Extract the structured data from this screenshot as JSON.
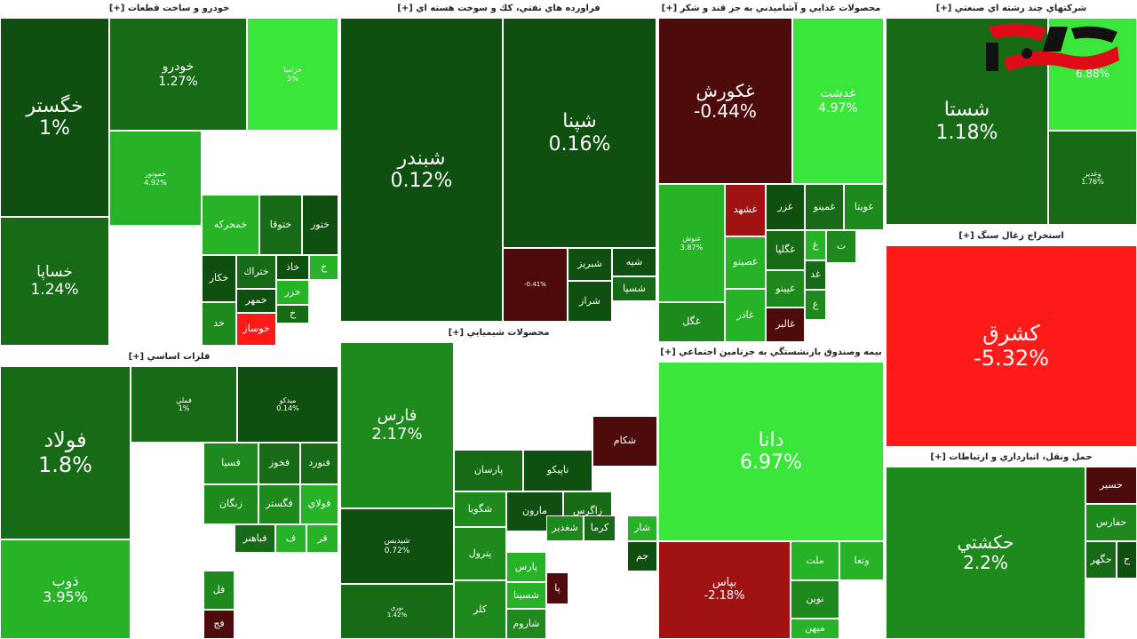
{
  "colors": {
    "g1": "#0f4f0f",
    "g2": "#176b17",
    "g3": "#1e8a1e",
    "g4": "#27b327",
    "g5": "#39e639",
    "r1": "#4d0b0b",
    "r2": "#a11313",
    "r3": "#ff1a1a"
  },
  "panels": [
    {
      "key": "p1",
      "title": "خودرو و ساخت قطعات [+]",
      "cells": [
        {
          "name": "خگستر",
          "pct": "1%",
          "color": "g1",
          "font": 22
        },
        {
          "name": "خودرو",
          "pct": "1.27%",
          "color": "g2",
          "font": 14
        },
        {
          "name": "خزاميا",
          "pct": "5%",
          "color": "g5",
          "font": 8
        },
        {
          "name": "خساپا",
          "pct": "1.24%",
          "color": "g2",
          "font": 17
        },
        {
          "name": "خمهر",
          "pct": "",
          "color": "g1",
          "font": 11
        },
        {
          "name": "خمحركه",
          "pct": "",
          "color": "g4",
          "font": 11
        },
        {
          "name": "ختوقا",
          "pct": "",
          "color": "g2",
          "font": 11
        },
        {
          "name": "ختور",
          "pct": "",
          "color": "g1",
          "font": 11
        },
        {
          "name": "خكار",
          "pct": "",
          "color": "g1",
          "font": 11
        },
        {
          "name": "ختراك",
          "pct": "",
          "color": "g2",
          "font": 11
        },
        {
          "name": "خوساز",
          "pct": "",
          "color": "r3",
          "font": 11
        },
        {
          "name": "خمونور",
          "pct": "4.92%",
          "color": "g4",
          "font": 8
        },
        {
          "name": "خاذ",
          "pct": "",
          "color": "g1",
          "font": 11
        },
        {
          "name": "خزر",
          "pct": "",
          "color": "g4",
          "font": 11
        },
        {
          "name": "خد",
          "pct": "",
          "color": "g3",
          "font": 11
        },
        {
          "name": "خ",
          "pct": "",
          "color": "g4",
          "font": 11
        },
        {
          "name": "خ",
          "pct": "",
          "color": "g2",
          "font": 11
        }
      ]
    },
    {
      "key": "p2",
      "title": "فراورده هاي نفتي، كك و سوخت هسته اي [+]",
      "cells": [
        {
          "name": "شبندر",
          "pct": "0.12%",
          "color": "g1",
          "font": 22
        },
        {
          "name": "شپنا",
          "pct": "0.16%",
          "color": "g1",
          "font": 22
        },
        {
          "name": "شبريز",
          "pct": "",
          "color": "g1",
          "font": 11
        },
        {
          "name": "شراز",
          "pct": "",
          "color": "g1",
          "font": 11
        },
        {
          "name": "شيه",
          "pct": "",
          "color": "g1",
          "font": 11
        },
        {
          "name": "شسپا",
          "pct": "",
          "color": "g2",
          "font": 11
        },
        {
          "name": "",
          "pct": "-0.41%",
          "color": "r1",
          "font": 7
        }
      ]
    },
    {
      "key": "p3",
      "title": "محصولات غذايي و آشاميدني به جز قند و شكر [+]",
      "cells": [
        {
          "name": "غكورش",
          "pct": "-0.44%",
          "color": "r1",
          "font": 20
        },
        {
          "name": "غدشت",
          "pct": "4.97%",
          "color": "g5",
          "font": 14
        },
        {
          "name": "غشهد",
          "pct": "",
          "color": "r2",
          "font": 11
        },
        {
          "name": "غزر",
          "pct": "",
          "color": "g1",
          "font": 11
        },
        {
          "name": "غمينو",
          "pct": "",
          "color": "g2",
          "font": 11
        },
        {
          "name": "غويتا",
          "pct": "",
          "color": "g3",
          "font": 11
        },
        {
          "name": "غصينو",
          "pct": "",
          "color": "g4",
          "font": 11
        },
        {
          "name": "غگلپا",
          "pct": "",
          "color": "g2",
          "font": 11
        },
        {
          "name": "غپينو",
          "pct": "",
          "color": "g3",
          "font": 11
        },
        {
          "name": "غاذر",
          "pct": "",
          "color": "g4",
          "font": 11
        },
        {
          "name": "غالبر",
          "pct": "",
          "color": "r1",
          "font": 11
        },
        {
          "name": "غگل",
          "pct": "",
          "color": "g3",
          "font": 11
        },
        {
          "name": "غنوش",
          "pct": "3.87%",
          "color": "g4",
          "font": 8
        },
        {
          "name": "غ",
          "pct": "",
          "color": "g4",
          "font": 11
        },
        {
          "name": "غ",
          "pct": "",
          "color": "g3",
          "font": 11
        },
        {
          "name": "غ",
          "pct": "",
          "color": "r1",
          "font": 11
        },
        {
          "name": "غد",
          "pct": "",
          "color": "g2",
          "font": 11
        },
        {
          "name": "ت",
          "pct": "",
          "color": "g3",
          "font": 11
        }
      ]
    },
    {
      "key": "p4",
      "title": "شركتهاي چند رشته اي صنعتي [+]",
      "cells": [
        {
          "name": "شستا",
          "pct": "1.18%",
          "color": "g2",
          "font": 22
        },
        {
          "name": "",
          "pct": "6.88%",
          "color": "g5",
          "font": 12
        },
        {
          "name": "وغدير",
          "pct": "1.76%",
          "color": "g2",
          "font": 8
        }
      ]
    },
    {
      "key": "p5",
      "title": "استخراج زغال سنگ [+]",
      "cells": [
        {
          "name": "كشرق",
          "pct": "-5.32%",
          "color": "r3",
          "font": 24
        }
      ]
    },
    {
      "key": "p6",
      "title": "فلزات اساسي [+]",
      "cells": [
        {
          "name": "فولاد",
          "pct": "1.8%",
          "color": "g2",
          "font": 24
        },
        {
          "name": "ذوب",
          "pct": "3.95%",
          "color": "g4",
          "font": 16
        },
        {
          "name": "فملي",
          "pct": "1%",
          "color": "g2",
          "font": 8
        },
        {
          "name": "ميدكو",
          "pct": "0.14%",
          "color": "g1",
          "font": 8
        },
        {
          "name": "فسپا",
          "pct": "",
          "color": "g3",
          "font": 11
        },
        {
          "name": "فخوز",
          "pct": "",
          "color": "g2",
          "font": 11
        },
        {
          "name": "فنورد",
          "pct": "",
          "color": "g2",
          "font": 11
        },
        {
          "name": "زنگان",
          "pct": "",
          "color": "g3",
          "font": 11
        },
        {
          "name": "فگستر",
          "pct": "",
          "color": "g3",
          "font": 11
        },
        {
          "name": "فولاي",
          "pct": "",
          "color": "g4",
          "font": 11
        },
        {
          "name": "فباهنر",
          "pct": "",
          "color": "g2",
          "font": 11
        },
        {
          "name": "ف",
          "pct": "",
          "color": "g4",
          "font": 11
        },
        {
          "name": "فر",
          "pct": "",
          "color": "g4",
          "font": 11
        },
        {
          "name": "فل",
          "pct": "",
          "color": "g3",
          "font": 11
        },
        {
          "name": "فج",
          "pct": "",
          "color": "r1",
          "font": 11
        }
      ]
    },
    {
      "key": "p7",
      "title": "محصولات شيميايي [+]",
      "cells": [
        {
          "name": "فارس",
          "pct": "2.17%",
          "color": "g3",
          "font": 18
        },
        {
          "name": "شپديس",
          "pct": "0.72%",
          "color": "g1",
          "font": 9
        },
        {
          "name": "پارسان",
          "pct": "",
          "color": "g2",
          "font": 11
        },
        {
          "name": "تاپيكو",
          "pct": "",
          "color": "g1",
          "font": 11
        },
        {
          "name": "شكام",
          "pct": "",
          "color": "r1",
          "font": 11
        },
        {
          "name": "مارون",
          "pct": "",
          "color": "g1",
          "font": 11
        },
        {
          "name": "زاگرس",
          "pct": "",
          "color": "g2",
          "font": 11
        },
        {
          "name": "شگويا",
          "pct": "",
          "color": "g3",
          "font": 11
        },
        {
          "name": "پترول",
          "pct": "",
          "color": "g3",
          "font": 11
        },
        {
          "name": "كلر",
          "pct": "",
          "color": "g3",
          "font": 11
        },
        {
          "name": "شغدير",
          "pct": "",
          "color": "g3",
          "font": 11
        },
        {
          "name": "كرما",
          "pct": "",
          "color": "g2",
          "font": 11
        },
        {
          "name": "جم",
          "pct": "",
          "color": "g1",
          "font": 11
        },
        {
          "name": "پارس",
          "pct": "",
          "color": "g4",
          "font": 11
        },
        {
          "name": "شسينا",
          "pct": "",
          "color": "g4",
          "font": 11
        },
        {
          "name": "شاروم",
          "pct": "",
          "color": "g3",
          "font": 11
        },
        {
          "name": "شار",
          "pct": "",
          "color": "g4",
          "font": 11
        },
        {
          "name": "پا",
          "pct": "",
          "color": "r1",
          "font": 11
        },
        {
          "name": "نوري",
          "pct": "1.42%",
          "color": "g2",
          "font": 7
        }
      ]
    },
    {
      "key": "p8",
      "title": "بيمه وصندوق بازنشستگي به جزتامين اجتماعي [+]",
      "cells": [
        {
          "name": "دانا",
          "pct": "6.97%",
          "color": "g5",
          "font": 22
        },
        {
          "name": "بپاس",
          "pct": "-2.18%",
          "color": "r2",
          "font": 13
        },
        {
          "name": "ملت",
          "pct": "",
          "color": "g4",
          "font": 11
        },
        {
          "name": "وتعا",
          "pct": "",
          "color": "g4",
          "font": 11
        },
        {
          "name": "نوين",
          "pct": "",
          "color": "g3",
          "font": 11
        },
        {
          "name": "ميهن",
          "pct": "",
          "color": "g4",
          "font": 11
        }
      ]
    },
    {
      "key": "p9",
      "title": "حمل ونقل، انبارداري و ارتباطات [+]",
      "cells": [
        {
          "name": "حكشتي",
          "pct": "2.2%",
          "color": "g3",
          "font": 20
        },
        {
          "name": "حسير",
          "pct": "",
          "color": "r1",
          "font": 11
        },
        {
          "name": "حفارس",
          "pct": "",
          "color": "g3",
          "font": 11
        },
        {
          "name": "حگهر",
          "pct": "",
          "color": "g2",
          "font": 11
        },
        {
          "name": "ح",
          "pct": "",
          "color": "g1",
          "font": 11
        }
      ]
    }
  ]
}
